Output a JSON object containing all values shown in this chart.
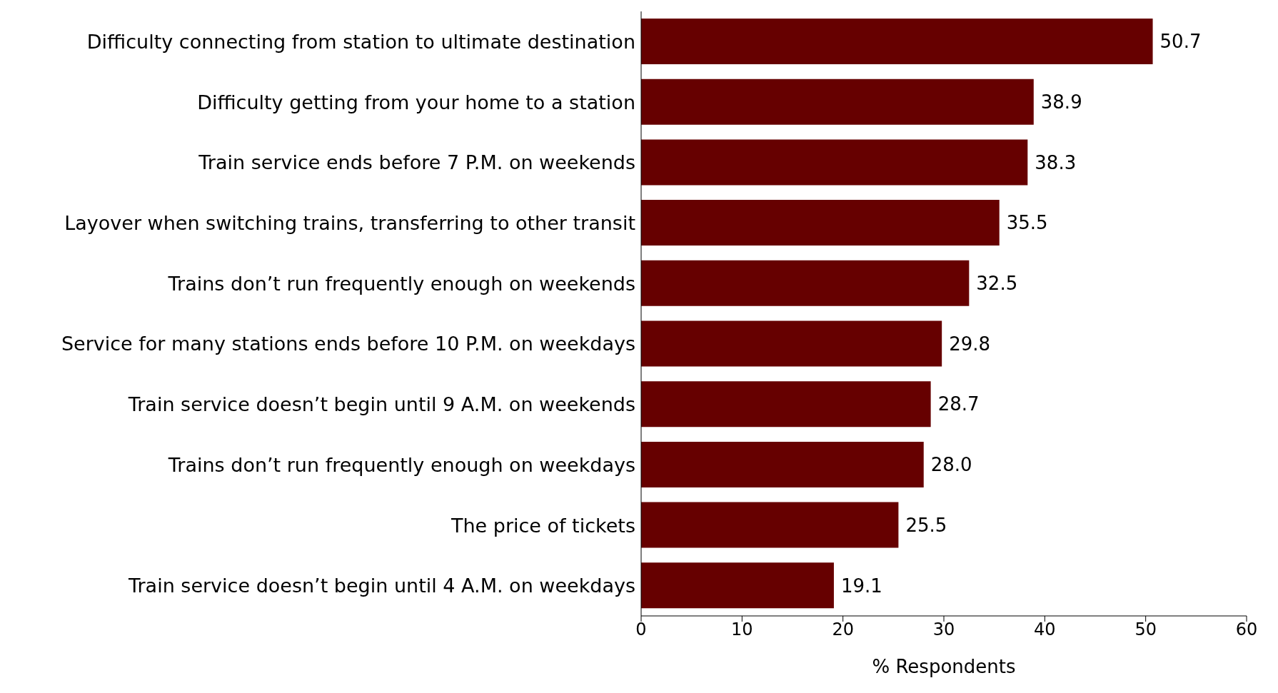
{
  "chart_data": {
    "type": "bar",
    "orientation": "horizontal",
    "xlabel": "% Respondents",
    "categories": [
      "Difficulty connecting from station to ultimate destination",
      "Difficulty getting from your home to a station",
      "Train service ends before 7 P.M. on weekends",
      "Layover when switching trains, transferring to other transit",
      "Trains don’t run frequently enough on weekends",
      "Service for many stations ends before 10 P.M. on weekdays",
      "Train service doesn’t begin until 9 A.M. on weekends",
      "Trains don’t run frequently enough on weekdays",
      "The price of tickets",
      "Train service doesn’t begin until 4 A.M. on weekdays"
    ],
    "values": [
      50.7,
      38.9,
      38.3,
      35.5,
      32.5,
      29.8,
      28.7,
      28.0,
      25.5,
      19.1
    ],
    "value_labels": [
      "50.7",
      "38.9",
      "38.3",
      "35.5",
      "32.5",
      "29.8",
      "28.7",
      "28.0",
      "25.5",
      "19.1"
    ],
    "color": "#660000",
    "xlim": [
      0,
      60
    ],
    "xticks": [
      0,
      10,
      20,
      30,
      40,
      50,
      60
    ],
    "grid": false
  }
}
